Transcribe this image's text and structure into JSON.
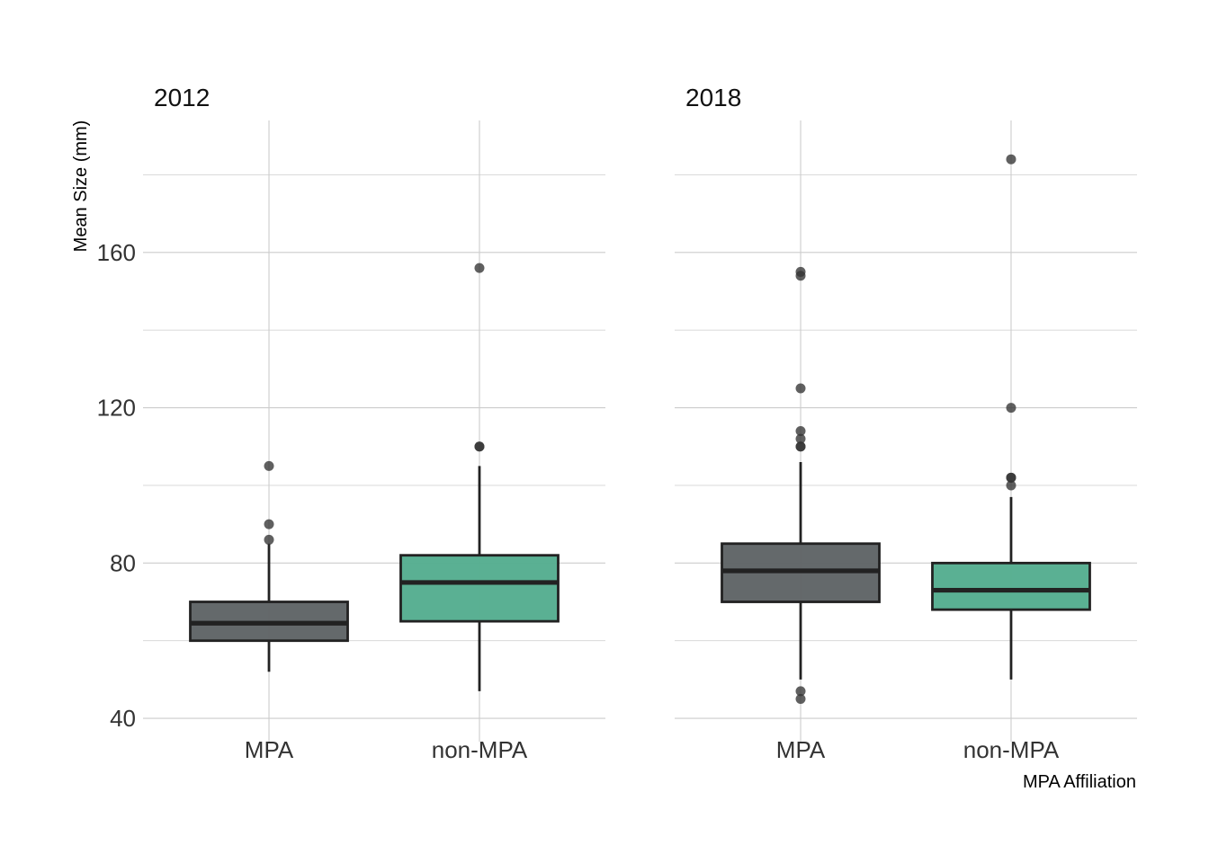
{
  "chart_data": {
    "type": "boxplot",
    "ylabel": "Mean Size (mm)",
    "xlabel": "MPA Affiliation",
    "ylim": [
      34,
      194
    ],
    "y_ticks": [
      40,
      80,
      120,
      160
    ],
    "y_minor_ticks": [
      60,
      100,
      140,
      180
    ],
    "categories": [
      "MPA",
      "non-MPA"
    ],
    "grid": true,
    "colors": {
      "MPA": "#5f6466",
      "non-MPA": "#55ad8f"
    },
    "panels": [
      {
        "title": "2012",
        "boxes": [
          {
            "category": "MPA",
            "whisker_low": 52,
            "q1": 60,
            "median": 64.5,
            "q3": 70,
            "whisker_high": 85,
            "outliers": [
              86,
              90,
              105
            ]
          },
          {
            "category": "non-MPA",
            "whisker_low": 47,
            "q1": 65,
            "median": 75,
            "q3": 82,
            "whisker_high": 105,
            "outliers": [
              110,
              110,
              156
            ]
          }
        ]
      },
      {
        "title": "2018",
        "boxes": [
          {
            "category": "MPA",
            "whisker_low": 50,
            "q1": 70,
            "median": 78,
            "q3": 85,
            "whisker_high": 106,
            "outliers": [
              45,
              47,
              110,
              110,
              112,
              114,
              125,
              154,
              155
            ]
          },
          {
            "category": "non-MPA",
            "whisker_low": 50,
            "q1": 68,
            "median": 73,
            "q3": 80,
            "whisker_high": 97,
            "outliers": [
              100,
              102,
              102,
              120,
              184
            ]
          }
        ]
      }
    ]
  }
}
